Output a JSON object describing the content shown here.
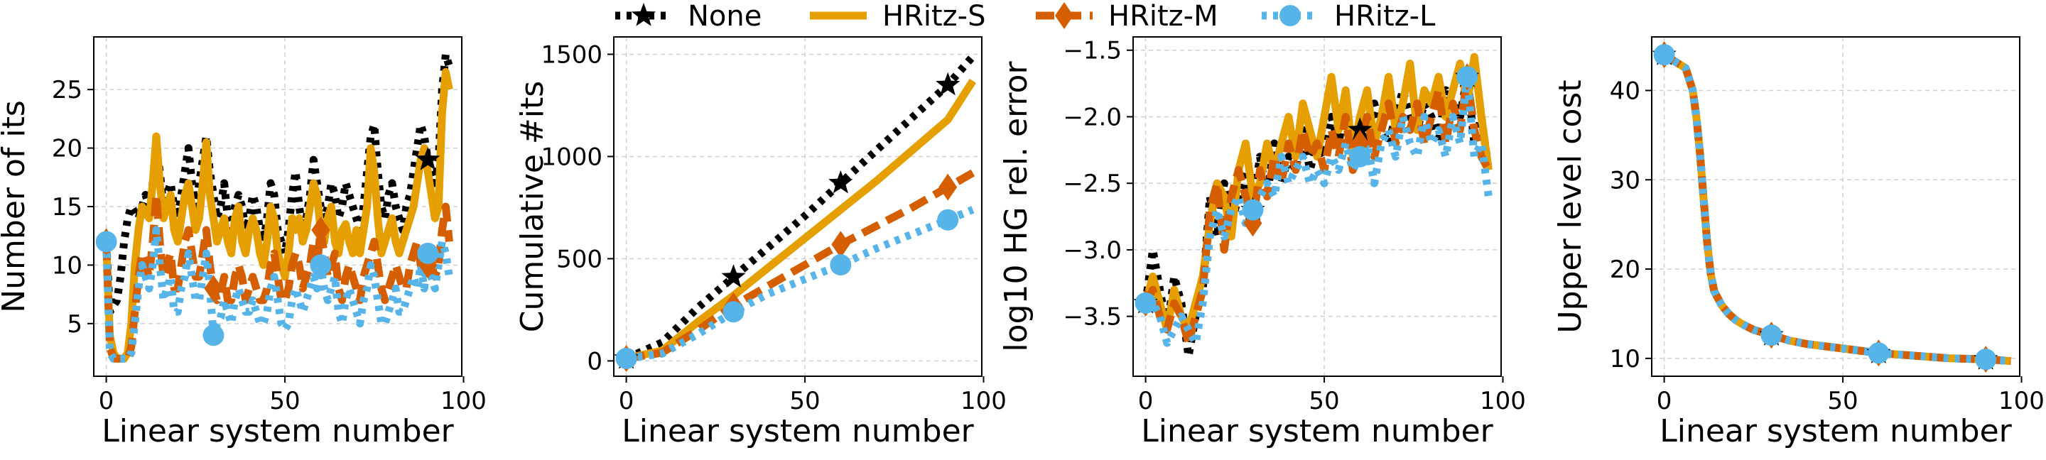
{
  "legend": {
    "entries": [
      {
        "label": "None",
        "color": "#000000",
        "style": "dotted",
        "marker": "star"
      },
      {
        "label": "HRitz-S",
        "color": "#E69F00",
        "style": "solid",
        "marker": "none"
      },
      {
        "label": "HRitz-M",
        "color": "#D55E00",
        "style": "dashed",
        "marker": "diamond"
      },
      {
        "label": "HRitz-L",
        "color": "#56B4E9",
        "style": "dotted",
        "marker": "circle"
      }
    ]
  },
  "chart_data": [
    {
      "type": "line",
      "xlabel": "Linear system number",
      "ylabel": "Number of its",
      "xlim": [
        -3.5,
        99.5
      ],
      "ylim": [
        0.5,
        29.5
      ],
      "xticks": [
        0,
        50,
        100
      ],
      "yticks": [
        5,
        10,
        15,
        20,
        25
      ],
      "grid": true,
      "x": [
        0,
        1,
        2,
        3,
        4,
        5,
        6,
        7,
        8,
        9,
        10,
        11,
        12,
        13,
        14,
        15,
        16,
        17,
        18,
        19,
        20,
        21,
        22,
        23,
        24,
        25,
        26,
        27,
        28,
        29,
        30,
        31,
        32,
        33,
        34,
        35,
        36,
        37,
        38,
        39,
        40,
        41,
        42,
        43,
        44,
        45,
        46,
        47,
        48,
        49,
        50,
        51,
        52,
        53,
        54,
        55,
        56,
        57,
        58,
        59,
        60,
        61,
        62,
        63,
        64,
        65,
        66,
        67,
        68,
        69,
        70,
        71,
        72,
        73,
        74,
        75,
        76,
        77,
        78,
        79,
        80,
        81,
        82,
        83,
        84,
        85,
        86,
        87,
        88,
        89,
        90,
        91,
        92,
        93,
        94,
        95,
        96
      ],
      "series": [
        {
          "name": "None",
          "color": "#000000",
          "style": "dotted",
          "marker": "star",
          "marker_every": 30,
          "values": [
            12,
            6,
            6.5,
            7,
            9,
            12,
            14,
            15,
            14.5,
            14,
            15,
            16,
            15,
            17,
            20,
            18,
            15,
            16,
            17,
            15,
            14,
            16,
            18,
            20,
            17,
            15,
            17,
            19,
            21,
            18,
            16,
            14,
            15,
            17,
            14,
            13,
            15,
            16,
            15,
            13,
            14,
            16,
            15,
            13,
            12,
            14,
            17,
            16,
            13,
            12,
            11,
            13,
            16,
            18,
            15,
            13,
            14,
            16,
            19,
            17,
            15,
            14,
            15,
            17,
            16,
            14,
            15,
            17,
            16,
            15,
            14,
            13,
            15,
            18,
            21,
            22,
            18,
            15,
            14,
            16,
            17,
            15,
            14,
            13,
            15,
            16,
            18,
            20,
            22,
            21,
            19,
            18,
            17,
            19,
            25,
            28,
            27
          ]
        },
        {
          "name": "HRitz-S",
          "color": "#E69F00",
          "style": "solid",
          "marker": "none",
          "values": [
            12,
            4,
            2.5,
            2,
            2,
            2,
            2.5,
            5,
            10,
            13,
            15,
            14.5,
            14,
            17,
            21,
            17,
            14,
            15,
            16,
            13,
            12,
            14,
            16,
            17,
            15,
            13,
            14,
            17,
            20.5,
            16,
            14,
            12,
            13,
            14,
            12,
            11,
            14,
            15,
            12,
            11,
            13,
            14,
            13,
            11,
            10,
            12,
            15,
            14,
            11,
            10,
            9,
            11,
            14,
            13,
            14,
            12,
            13,
            15,
            17,
            16,
            13,
            12,
            14,
            15,
            12,
            11,
            13,
            13.5,
            12,
            11,
            13,
            11,
            13,
            15,
            20,
            18,
            14,
            11,
            12,
            13,
            14,
            12,
            11,
            12,
            13,
            14,
            15,
            17,
            19,
            20,
            18,
            16,
            14,
            15,
            23,
            26.5,
            25
          ]
        },
        {
          "name": "HRitz-M",
          "color": "#D55E00",
          "style": "dashed",
          "marker": "diamond",
          "marker_every": 30,
          "values": [
            12,
            3,
            2,
            2,
            2,
            2,
            2,
            3,
            6,
            9,
            11,
            10,
            9,
            12,
            16,
            12,
            9,
            10,
            11,
            8,
            8,
            10,
            12,
            13,
            11,
            9,
            9,
            11,
            13,
            10,
            8,
            7,
            7.5,
            9,
            7,
            7,
            9,
            10,
            9,
            7,
            8,
            9,
            8,
            7,
            7,
            8,
            10,
            11,
            9,
            7,
            7,
            8,
            10,
            11,
            10,
            8,
            9,
            10,
            12,
            10,
            13,
            11,
            9,
            10,
            11,
            8,
            7,
            9,
            10,
            9,
            8,
            7,
            9,
            10,
            11,
            12,
            10,
            8,
            7,
            8,
            9,
            10,
            9,
            8,
            8,
            10,
            11,
            12,
            10,
            10,
            10,
            10,
            9,
            10,
            13,
            15,
            12
          ]
        },
        {
          "name": "HRitz-L",
          "color": "#56B4E9",
          "style": "dotted",
          "marker": "circle",
          "marker_every": 30,
          "values": [
            12,
            2.5,
            2,
            2,
            2,
            2,
            2,
            2.5,
            5,
            8,
            10,
            9,
            8,
            10,
            13,
            10,
            7,
            8,
            9,
            6,
            6,
            8,
            9,
            11,
            9,
            7,
            7,
            9,
            11,
            8,
            4,
            5,
            5.5,
            7,
            6,
            5,
            7,
            8,
            7,
            6,
            6,
            7,
            6,
            5,
            5,
            6,
            8,
            9,
            7,
            5,
            4.5,
            5,
            7,
            8,
            7,
            6,
            7,
            8,
            9,
            8,
            10,
            8,
            7,
            8,
            9,
            6,
            5,
            7,
            8,
            7,
            6,
            5,
            7,
            8,
            10,
            9,
            7,
            5,
            5,
            6,
            7,
            8,
            6,
            6,
            7,
            8,
            9,
            8,
            10,
            8,
            11,
            9,
            8,
            10,
            12,
            11,
            9
          ]
        }
      ]
    },
    {
      "type": "line",
      "xlabel": "Linear system number",
      "ylabel": "Cumulative #its",
      "xlim": [
        -3.5,
        99.5
      ],
      "ylim": [
        -75,
        1585
      ],
      "xticks": [
        0,
        50,
        100
      ],
      "yticks": [
        0,
        500,
        1000,
        1500
      ],
      "grid": true,
      "x": [
        0,
        10,
        20,
        30,
        40,
        50,
        60,
        70,
        80,
        90,
        97
      ],
      "series": [
        {
          "name": "None",
          "color": "#000000",
          "style": "dotted",
          "marker": "star",
          "marker_every": 3,
          "values": [
            12,
            90,
            260,
            410,
            560,
            710,
            870,
            1030,
            1190,
            1350,
            1490
          ]
        },
        {
          "name": "HRitz-S",
          "color": "#E69F00",
          "style": "solid",
          "marker": "none",
          "values": [
            12,
            50,
            190,
            320,
            460,
            600,
            740,
            880,
            1030,
            1180,
            1370
          ]
        },
        {
          "name": "HRitz-M",
          "color": "#D55E00",
          "style": "dashed",
          "marker": "diamond",
          "marker_every": 3,
          "values": [
            12,
            40,
            150,
            270,
            370,
            470,
            570,
            660,
            750,
            850,
            920
          ]
        },
        {
          "name": "HRitz-L",
          "color": "#56B4E9",
          "style": "dotted",
          "marker": "circle",
          "marker_every": 3,
          "values": [
            12,
            35,
            130,
            240,
            330,
            400,
            470,
            550,
            620,
            690,
            740
          ]
        }
      ]
    },
    {
      "type": "line",
      "xlabel": "Linear system number",
      "ylabel": "log10 HG rel. error",
      "xlim": [
        -3.5,
        99.5
      ],
      "ylim": [
        -3.95,
        -1.4
      ],
      "xticks": [
        0,
        50,
        100
      ],
      "yticks": [
        -3.5,
        -3.0,
        -2.5,
        -2.0,
        -1.5
      ],
      "ytick_labels": [
        "−3.5",
        "−3.0",
        "−2.5",
        "−2.0",
        "−1.5"
      ],
      "grid": true,
      "x": [
        0,
        2,
        4,
        6,
        8,
        10,
        12,
        14,
        16,
        18,
        20,
        22,
        24,
        26,
        28,
        30,
        32,
        34,
        36,
        38,
        40,
        42,
        44,
        46,
        48,
        50,
        52,
        54,
        56,
        58,
        60,
        62,
        64,
        66,
        68,
        70,
        72,
        74,
        76,
        78,
        80,
        82,
        84,
        86,
        88,
        90,
        92,
        94,
        96
      ],
      "series": [
        {
          "name": "None",
          "color": "#000000",
          "style": "dotted",
          "marker": "star",
          "marker_every": 0,
          "values": [
            -3.4,
            -3.0,
            -3.3,
            -3.6,
            -3.2,
            -3.4,
            -3.8,
            -3.5,
            -3.3,
            -2.6,
            -2.9,
            -2.5,
            -2.8,
            -2.6,
            -2.4,
            -2.7,
            -2.3,
            -2.6,
            -2.2,
            -2.5,
            -2.3,
            -2.4,
            -2.1,
            -2.4,
            -2.2,
            -2.3,
            -2.0,
            -2.2,
            -1.9,
            -2.3,
            -2.1,
            -2.2,
            -1.9,
            -2.1,
            -2.2,
            -2.0,
            -1.8,
            -2.0,
            -2.1,
            -1.9,
            -2.0,
            -2.2,
            -1.8,
            -1.9,
            -2.0,
            -1.7,
            -2.2,
            -2.0,
            -2.4
          ]
        },
        {
          "name": "HRitz-S",
          "color": "#E69F00",
          "style": "solid",
          "marker": "none",
          "values": [
            -3.4,
            -3.2,
            -3.4,
            -3.6,
            -3.3,
            -3.5,
            -3.6,
            -3.4,
            -3.2,
            -2.8,
            -2.5,
            -2.6,
            -2.9,
            -2.4,
            -2.2,
            -2.6,
            -2.5,
            -2.2,
            -2.4,
            -2.2,
            -2.0,
            -2.3,
            -1.9,
            -2.1,
            -2.3,
            -2.0,
            -1.7,
            -2.1,
            -1.8,
            -2.3,
            -2.0,
            -1.8,
            -2.2,
            -2.0,
            -1.7,
            -2.1,
            -1.9,
            -1.6,
            -2.1,
            -1.8,
            -1.9,
            -1.7,
            -2.0,
            -1.8,
            -1.6,
            -1.9,
            -1.55,
            -2.0,
            -2.4
          ]
        },
        {
          "name": "HRitz-M",
          "color": "#D55E00",
          "style": "dashed",
          "marker": "diamond",
          "marker_every": 0,
          "values": [
            -3.4,
            -3.3,
            -3.5,
            -3.6,
            -3.4,
            -3.5,
            -3.7,
            -3.5,
            -3.3,
            -2.7,
            -2.5,
            -3.0,
            -2.6,
            -2.4,
            -2.6,
            -2.8,
            -2.4,
            -2.6,
            -2.3,
            -2.5,
            -2.2,
            -2.4,
            -2.1,
            -2.3,
            -2.2,
            -2.4,
            -2.1,
            -2.3,
            -2.0,
            -2.4,
            -2.2,
            -2.0,
            -2.3,
            -2.1,
            -1.9,
            -2.2,
            -2.0,
            -2.1,
            -1.9,
            -2.2,
            -2.0,
            -1.8,
            -2.2,
            -1.9,
            -2.1,
            -1.7,
            -2.1,
            -2.3,
            -2.4
          ]
        },
        {
          "name": "HRitz-L",
          "color": "#56B4E9",
          "style": "dotted",
          "marker": "circle",
          "marker_every": 0,
          "values": [
            -3.4,
            -3.4,
            -3.5,
            -3.7,
            -3.6,
            -3.5,
            -3.6,
            -3.7,
            -3.4,
            -2.9,
            -2.7,
            -2.9,
            -2.7,
            -2.6,
            -2.8,
            -2.7,
            -2.6,
            -2.5,
            -2.6,
            -2.3,
            -2.5,
            -2.4,
            -2.3,
            -2.5,
            -2.4,
            -2.5,
            -2.3,
            -2.4,
            -2.2,
            -2.4,
            -2.3,
            -2.2,
            -2.5,
            -2.2,
            -2.1,
            -2.3,
            -2.0,
            -2.2,
            -2.3,
            -2.0,
            -2.2,
            -2.1,
            -2.3,
            -2.0,
            -2.2,
            -1.7,
            -2.3,
            -2.2,
            -2.6
          ]
        }
      ]
    },
    {
      "type": "line",
      "xlabel": "Linear system number",
      "ylabel": "Upper level cost",
      "xlim": [
        -3.5,
        99.5
      ],
      "ylim": [
        8,
        46
      ],
      "xticks": [
        0,
        50,
        100
      ],
      "yticks": [
        10,
        20,
        30,
        40
      ],
      "grid": true,
      "x": [
        0,
        2,
        4,
        6,
        8,
        9,
        10,
        11,
        12,
        13,
        14,
        16,
        18,
        20,
        22,
        25,
        30,
        35,
        40,
        50,
        60,
        70,
        80,
        90,
        97
      ],
      "series": [
        {
          "name": "None",
          "color": "#000000",
          "style": "dotted",
          "marker": "star",
          "marker_every": 0,
          "values": [
            44,
            43.5,
            43,
            42.5,
            40,
            37,
            33,
            28,
            23,
            19.5,
            17.5,
            16,
            15,
            14.3,
            13.8,
            13.2,
            12.6,
            12.0,
            11.6,
            11.1,
            10.6,
            10.3,
            10.0,
            9.9,
            9.7
          ]
        },
        {
          "name": "HRitz-S",
          "color": "#E69F00",
          "style": "solid",
          "marker": "none",
          "values": [
            44,
            43.5,
            43,
            42.5,
            40,
            37,
            33,
            28,
            23,
            19.5,
            17.5,
            16,
            15,
            14.3,
            13.8,
            13.2,
            12.6,
            12.0,
            11.6,
            11.1,
            10.6,
            10.3,
            10.0,
            9.9,
            9.7
          ]
        },
        {
          "name": "HRitz-M",
          "color": "#D55E00",
          "style": "dashed",
          "marker": "diamond",
          "marker_every": 0,
          "values": [
            44,
            43.5,
            43,
            42.5,
            40,
            37,
            33,
            28,
            23,
            19.5,
            17.5,
            16,
            15,
            14.3,
            13.8,
            13.2,
            12.6,
            12.0,
            11.6,
            11.1,
            10.6,
            10.3,
            10.0,
            9.9,
            9.7
          ]
        },
        {
          "name": "HRitz-L",
          "color": "#56B4E9",
          "style": "dotted",
          "marker": "circle",
          "marker_every": 0,
          "values": [
            44,
            43.5,
            43,
            42.5,
            40,
            37,
            33,
            28,
            23,
            19.5,
            17.5,
            16,
            15,
            14.3,
            13.8,
            13.2,
            12.6,
            12.0,
            11.6,
            11.1,
            10.6,
            10.3,
            10.0,
            9.9,
            9.7
          ]
        }
      ]
    }
  ]
}
